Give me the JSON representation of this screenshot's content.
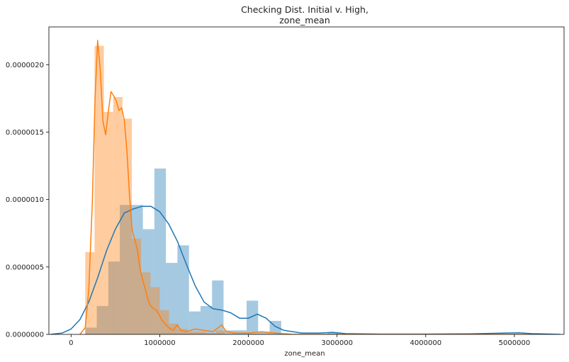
{
  "chart_data": {
    "type": "histogram-kde",
    "title_line1": "Checking Dist. Initial v. High,",
    "title_line2": "zone_mean",
    "xlabel": "zone_mean",
    "ylabel": "",
    "xlim": [
      -250000,
      5560000
    ],
    "ylim": [
      0,
      2.28e-06
    ],
    "x_ticks": [
      {
        "value": 0,
        "label": "0"
      },
      {
        "value": 1000000,
        "label": "1000000"
      },
      {
        "value": 2000000,
        "label": "2000000"
      },
      {
        "value": 3000000,
        "label": "3000000"
      },
      {
        "value": 4000000,
        "label": "4000000"
      },
      {
        "value": 5000000,
        "label": "5000000"
      }
    ],
    "y_ticks": [
      {
        "value": 0,
        "label": "0.0000000"
      },
      {
        "value": 5e-07,
        "label": "0.0000005"
      },
      {
        "value": 1e-06,
        "label": "0.0000010"
      },
      {
        "value": 1.5e-06,
        "label": "0.0000015"
      },
      {
        "value": 2e-06,
        "label": "0.0000020"
      }
    ],
    "grid": false,
    "legend": "none",
    "series": [
      {
        "color": "#1f77b4",
        "bar_opacity": 0.4,
        "bins": [
          {
            "x0": 160000,
            "x1": 290000,
            "y": 5e-08
          },
          {
            "x0": 290000,
            "x1": 420000,
            "y": 2.1e-07
          },
          {
            "x0": 420000,
            "x1": 550000,
            "y": 5.4e-07
          },
          {
            "x0": 550000,
            "x1": 680000,
            "y": 9.6e-07
          },
          {
            "x0": 680000,
            "x1": 810000,
            "y": 9.6e-07
          },
          {
            "x0": 810000,
            "x1": 940000,
            "y": 7.8e-07
          },
          {
            "x0": 940000,
            "x1": 1070000,
            "y": 1.23e-06
          },
          {
            "x0": 1070000,
            "x1": 1200000,
            "y": 5.3e-07
          },
          {
            "x0": 1200000,
            "x1": 1330000,
            "y": 6.6e-07
          },
          {
            "x0": 1330000,
            "x1": 1460000,
            "y": 1.7e-07
          },
          {
            "x0": 1460000,
            "x1": 1590000,
            "y": 2.1e-07
          },
          {
            "x0": 1590000,
            "x1": 1720000,
            "y": 4e-07
          },
          {
            "x0": 1720000,
            "x1": 1850000,
            "y": 3e-08
          },
          {
            "x0": 1850000,
            "x1": 1980000,
            "y": 3e-08
          },
          {
            "x0": 1980000,
            "x1": 2110000,
            "y": 2.5e-07
          },
          {
            "x0": 2110000,
            "x1": 2240000,
            "y": 2e-08
          },
          {
            "x0": 2240000,
            "x1": 2370000,
            "y": 1e-07
          },
          {
            "x0": 2890000,
            "x1": 3020000,
            "y": 1.5e-08
          }
        ],
        "kde": [
          [
            -230000,
            0.0
          ],
          [
            -100000,
            1e-08
          ],
          [
            0,
            4e-08
          ],
          [
            100000,
            1.1e-07
          ],
          [
            200000,
            2.4e-07
          ],
          [
            300000,
            4.2e-07
          ],
          [
            400000,
            6.2e-07
          ],
          [
            500000,
            7.8e-07
          ],
          [
            600000,
            9e-07
          ],
          [
            700000,
            9.3e-07
          ],
          [
            800000,
            9.5e-07
          ],
          [
            900000,
            9.5e-07
          ],
          [
            1000000,
            9.1e-07
          ],
          [
            1100000,
            8.2e-07
          ],
          [
            1200000,
            6.9e-07
          ],
          [
            1300000,
            5.2e-07
          ],
          [
            1400000,
            3.6e-07
          ],
          [
            1500000,
            2.4e-07
          ],
          [
            1600000,
            1.9e-07
          ],
          [
            1700000,
            1.8e-07
          ],
          [
            1800000,
            1.6e-07
          ],
          [
            1900000,
            1.2e-07
          ],
          [
            2000000,
            1.2e-07
          ],
          [
            2100000,
            1.5e-07
          ],
          [
            2200000,
            1.2e-07
          ],
          [
            2300000,
            6e-08
          ],
          [
            2400000,
            3e-08
          ],
          [
            2600000,
            1e-08
          ],
          [
            2800000,
            1e-08
          ],
          [
            2950000,
            1.5e-08
          ],
          [
            3100000,
            5e-09
          ],
          [
            3500000,
            2e-09
          ],
          [
            4000000,
            2e-09
          ],
          [
            4500000,
            4e-09
          ],
          [
            4900000,
            1e-08
          ],
          [
            5050000,
            1.2e-08
          ],
          [
            5200000,
            5e-09
          ],
          [
            5520000,
            0.0
          ]
        ]
      },
      {
        "color": "#ff7f0e",
        "bar_opacity": 0.4,
        "bins": [
          {
            "x0": 160000,
            "x1": 265000,
            "y": 6.1e-07
          },
          {
            "x0": 265000,
            "x1": 370000,
            "y": 2.14e-06
          },
          {
            "x0": 370000,
            "x1": 475000,
            "y": 1.65e-06
          },
          {
            "x0": 475000,
            "x1": 580000,
            "y": 1.76e-06
          },
          {
            "x0": 580000,
            "x1": 685000,
            "y": 1.6e-06
          },
          {
            "x0": 685000,
            "x1": 790000,
            "y": 7.1e-07
          },
          {
            "x0": 790000,
            "x1": 895000,
            "y": 4.6e-07
          },
          {
            "x0": 895000,
            "x1": 1000000,
            "y": 3.5e-07
          },
          {
            "x0": 1000000,
            "x1": 1105000,
            "y": 1.8e-07
          },
          {
            "x0": 1105000,
            "x1": 1210000,
            "y": 8e-08
          },
          {
            "x0": 1210000,
            "x1": 1315000,
            "y": 4e-08
          },
          {
            "x0": 1315000,
            "x1": 1420000,
            "y": 2e-08
          },
          {
            "x0": 1420000,
            "x1": 1525000,
            "y": 2e-08
          },
          {
            "x0": 1525000,
            "x1": 1630000,
            "y": 1e-08
          },
          {
            "x0": 1630000,
            "x1": 1735000,
            "y": 3e-08
          }
        ],
        "kde": [
          [
            100000,
            0.0
          ],
          [
            160000,
            5e-08
          ],
          [
            200000,
            3.3e-07
          ],
          [
            240000,
            9.8e-07
          ],
          [
            270000,
            1.75e-06
          ],
          [
            300000,
            2.18e-06
          ],
          [
            330000,
            1.95e-06
          ],
          [
            360000,
            1.58e-06
          ],
          [
            390000,
            1.48e-06
          ],
          [
            420000,
            1.65e-06
          ],
          [
            450000,
            1.8e-06
          ],
          [
            480000,
            1.77e-06
          ],
          [
            510000,
            1.73e-06
          ],
          [
            540000,
            1.66e-06
          ],
          [
            570000,
            1.68e-06
          ],
          [
            600000,
            1.59e-06
          ],
          [
            630000,
            1.36e-06
          ],
          [
            660000,
            1.02e-06
          ],
          [
            690000,
            7.7e-07
          ],
          [
            720000,
            7e-07
          ],
          [
            750000,
            6.2e-07
          ],
          [
            780000,
            4.8e-07
          ],
          [
            810000,
            4e-07
          ],
          [
            840000,
            3.3e-07
          ],
          [
            870000,
            2.5e-07
          ],
          [
            900000,
            2.1e-07
          ],
          [
            930000,
            1.9e-07
          ],
          [
            960000,
            1.8e-07
          ],
          [
            990000,
            1.5e-07
          ],
          [
            1020000,
            1.1e-07
          ],
          [
            1060000,
            8e-08
          ],
          [
            1100000,
            5e-08
          ],
          [
            1150000,
            3e-08
          ],
          [
            1200000,
            7e-08
          ],
          [
            1240000,
            3e-08
          ],
          [
            1300000,
            2e-08
          ],
          [
            1400000,
            4e-08
          ],
          [
            1500000,
            3e-08
          ],
          [
            1600000,
            2e-08
          ],
          [
            1700000,
            7e-08
          ],
          [
            1750000,
            2e-08
          ],
          [
            1850000,
            1e-08
          ],
          [
            2000000,
            1e-08
          ],
          [
            2150000,
            2e-08
          ],
          [
            2300000,
            1e-08
          ],
          [
            2500000,
            0.0
          ],
          [
            3000000,
            0.0
          ],
          [
            4000000,
            0.0
          ],
          [
            5000000,
            0.0
          ],
          [
            5150000,
            0.0
          ]
        ]
      }
    ]
  }
}
